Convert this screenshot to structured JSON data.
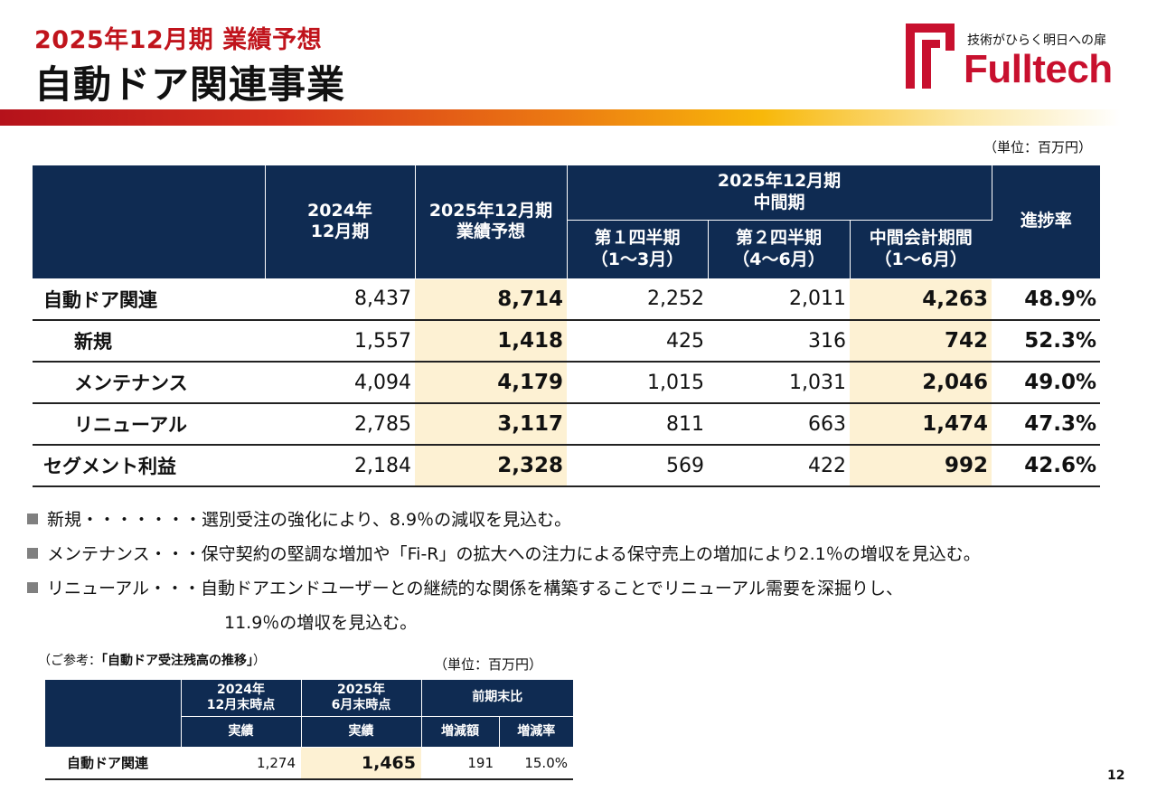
{
  "header": {
    "subtitle": "2025年12月期 業績予想",
    "title": "自動ドア関連事業"
  },
  "logo": {
    "tagline": "技術がひらく明日への扉",
    "brand": "Fulltech",
    "brand_color": "#c8102e"
  },
  "main_table": {
    "unit": "（単位：百万円）",
    "headers": {
      "col_2024": "2024年\n12月期",
      "col_forecast": "2025年12月期\n業績予想",
      "col_interim_group": "2025年12月期\n中間期",
      "col_q1": "第１四半期\n（1～3月）",
      "col_q2": "第２四半期\n（4～6月）",
      "col_h1": "中間会計期間\n（1～6月）",
      "col_progress": "進捗率"
    },
    "rows": [
      {
        "label": "自動ドア関連",
        "fy2024": "8,437",
        "forecast": "8,714",
        "q1": "2,252",
        "q2": "2,011",
        "h1": "4,263",
        "progress": "48.9%"
      },
      {
        "label": "新規",
        "fy2024": "1,557",
        "forecast": "1,418",
        "q1": "425",
        "q2": "316",
        "h1": "742",
        "progress": "52.3%"
      },
      {
        "label": "メンテナンス",
        "fy2024": "4,094",
        "forecast": "4,179",
        "q1": "1,015",
        "q2": "1,031",
        "h1": "2,046",
        "progress": "49.0%"
      },
      {
        "label": "リニューアル",
        "fy2024": "2,785",
        "forecast": "3,117",
        "q1": "811",
        "q2": "663",
        "h1": "1,474",
        "progress": "47.3%"
      },
      {
        "label": "セグメント利益",
        "fy2024": "2,184",
        "forecast": "2,328",
        "q1": "569",
        "q2": "422",
        "h1": "992",
        "progress": "42.6%"
      }
    ]
  },
  "notes": [
    "新規・・・・・・・選別受注の強化により、8.9％の減収を見込む。",
    "メンテナンス・・・保守契約の堅調な増加や「Fi-R」の拡大への注力による保守売上の増加により2.1％の増収を見込む。",
    "リニューアル・・・自動ドアエンドユーザーとの継続的な関係を構築することでリニューアル需要を深掘りし、",
    "11.9％の増収を見込む。"
  ],
  "reference": {
    "caption_prefix": "（ご参考：",
    "caption_title": "「自動ドア受注残高の推移」",
    "caption_suffix": "）",
    "unit": "（単位：百万円）",
    "headers": {
      "col_2024": "2024年\n12月末時点",
      "col_2025": "2025年\n6月末時点",
      "col_compare": "前期末比",
      "actual_1": "実績",
      "actual_2": "実績",
      "change_amount": "増減額",
      "change_rate": "増減率"
    },
    "row": {
      "label": "自動ドア関連",
      "v2024": "1,274",
      "v2025": "1,465",
      "change": "191",
      "rate": "15.0%"
    }
  },
  "page_number": "12"
}
